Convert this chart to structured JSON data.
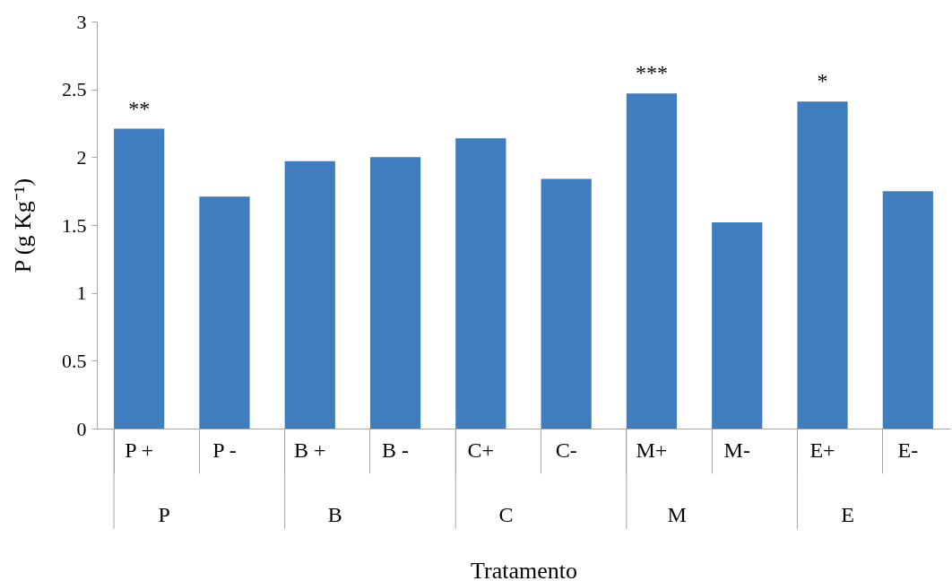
{
  "chart_data": {
    "type": "bar",
    "xlabel": "Tratamento",
    "ylabel": "P (g Kg⁻¹)",
    "categories": [
      "P +",
      "P -",
      "B +",
      "B -",
      "C+",
      "C-",
      "M+",
      "M-",
      "E+",
      "E-"
    ],
    "values": [
      2.21,
      1.71,
      1.97,
      2.0,
      2.14,
      1.84,
      2.47,
      1.52,
      2.41,
      1.75
    ],
    "color": "#3f7dbf",
    "ylim": [
      0,
      3
    ],
    "yticks": [
      0,
      0.5,
      1,
      1.5,
      2,
      2.5,
      3
    ],
    "grid": false,
    "annotations": [
      {
        "text": "**",
        "x": "P +",
        "y": 2.21
      },
      {
        "text": "***",
        "x": "M+",
        "y": 2.47
      },
      {
        "text": "*",
        "x": "E+",
        "y": 2.41
      },
      "P",
      "B",
      "C",
      "M",
      "E"
    ]
  }
}
